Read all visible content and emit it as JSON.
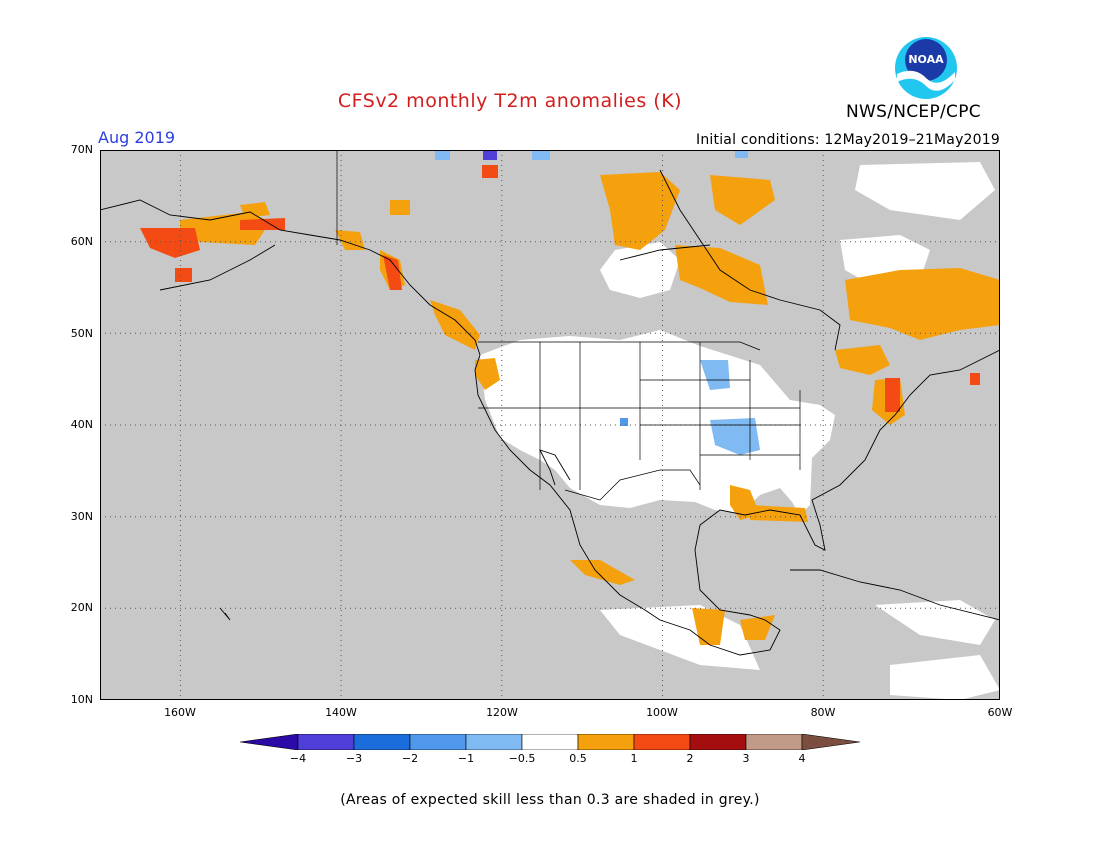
{
  "header": {
    "title": "CFSv2 monthly T2m anomalies (K)",
    "agency": "NWS/NCEP/CPC",
    "logo_text": "NOAA",
    "month": "Aug 2019",
    "initial_conditions": "Initial conditions: 12May2019–21May2019"
  },
  "map": {
    "lon_range": [
      -172,
      -60
    ],
    "lat_range": [
      10,
      70
    ],
    "lat_labels": [
      "70N",
      "60N",
      "50N",
      "40N",
      "30N",
      "20N",
      "10N"
    ],
    "lon_labels": [
      "160W",
      "140W",
      "120W",
      "100W",
      "80W",
      "60W"
    ],
    "background_color": "#c8c8c8",
    "gridlines": "dotted"
  },
  "colorbar": {
    "labels": [
      "−4",
      "−3",
      "−2",
      "−1",
      "−0.5",
      "0.5",
      "1",
      "2",
      "3",
      "4"
    ],
    "colors": [
      "#2b0aa8",
      "#4f3fd8",
      "#1c6ddc",
      "#4f98ec",
      "#7fbaf2",
      "#ffffff",
      "#f5a00d",
      "#f44a14",
      "#a50e0e",
      "#c29a88",
      "#7b4e3f"
    ]
  },
  "footer": {
    "note": "(Areas of expected skill less than 0.3 are shaded in grey.)"
  }
}
